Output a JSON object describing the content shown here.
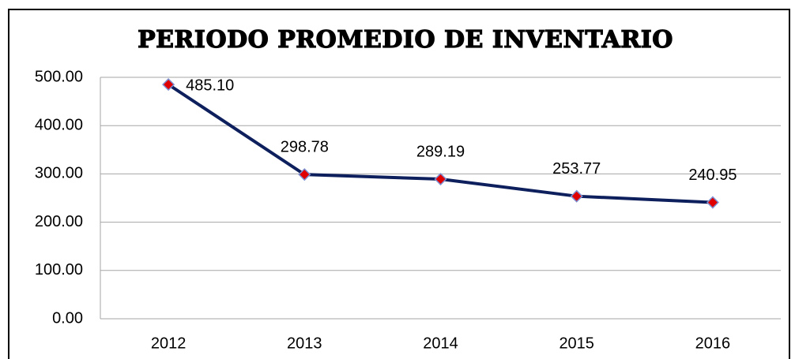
{
  "chart_data": {
    "type": "line",
    "title": "PERIODO PROMEDIO DE INVENTARIO",
    "categories": [
      "2012",
      "2013",
      "2014",
      "2015",
      "2016"
    ],
    "series": [
      {
        "color": "#0d1f5c",
        "marker_color": "#e00000",
        "values": [
          485.1,
          298.78,
          289.19,
          253.77,
          240.95
        ],
        "value_labels": [
          "485.10",
          "298.78",
          "289.19",
          "253.77",
          "240.95"
        ]
      }
    ],
    "ylim": [
      0,
      500
    ],
    "yticks": [
      {
        "value": 0,
        "label": "0.00"
      },
      {
        "value": 100,
        "label": "100.00"
      },
      {
        "value": 200,
        "label": "200.00"
      },
      {
        "value": 300,
        "label": "300.00"
      },
      {
        "value": 400,
        "label": "400.00"
      },
      {
        "value": 500,
        "label": "500.00"
      }
    ],
    "grid": true
  }
}
